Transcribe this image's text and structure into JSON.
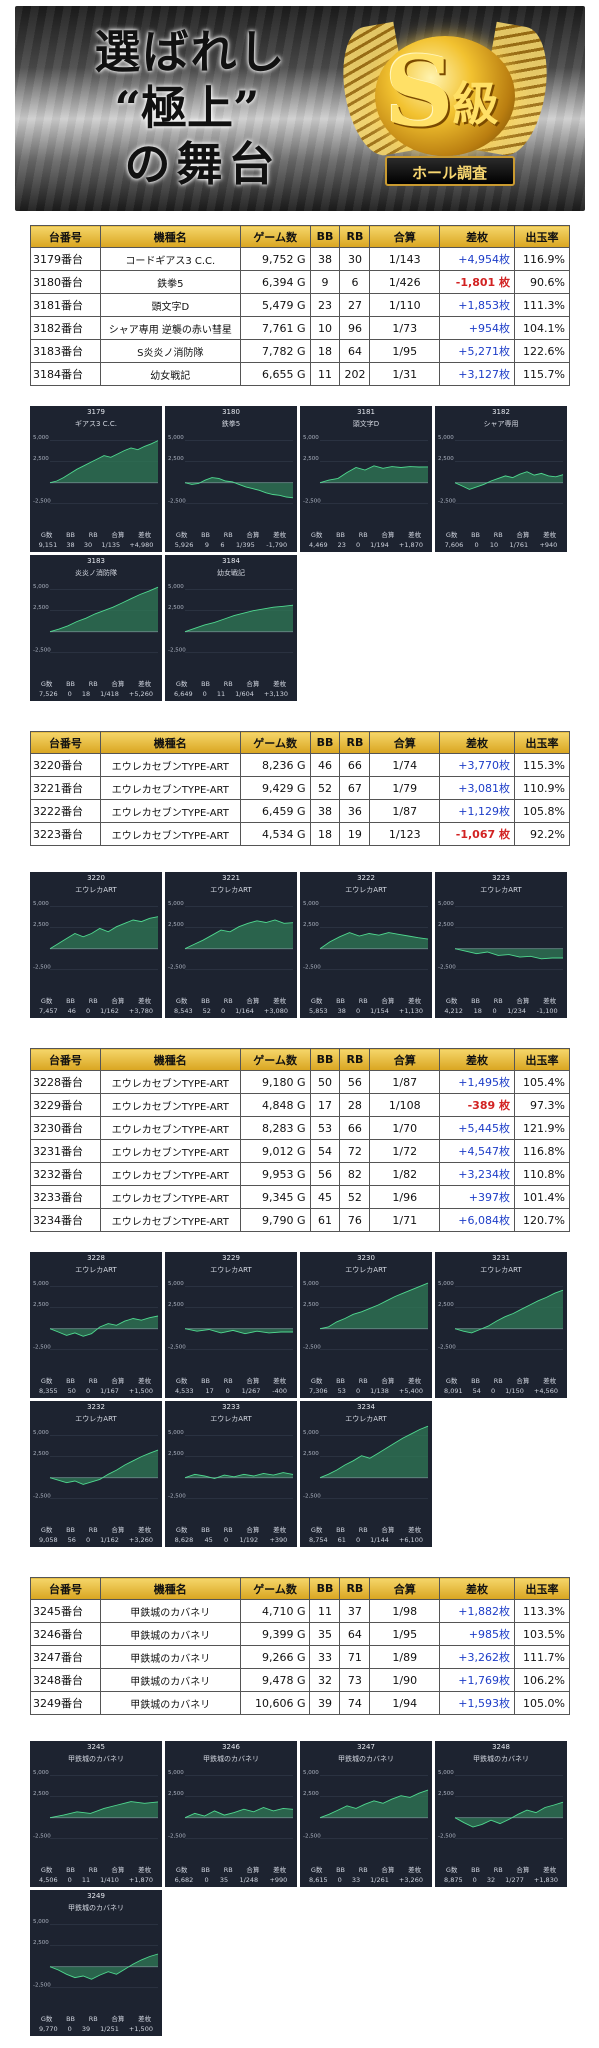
{
  "banner": {
    "title_line1": "選ばれし",
    "title_line2": "“極上”",
    "title_line3": "の舞台",
    "badge_letter": "S",
    "badge_grade": "級",
    "badge_ribbon": "ホール調査"
  },
  "table_headers": [
    "台番号",
    "機種名",
    "ゲーム数",
    "BB",
    "RB",
    "合算",
    "差枚",
    "出玉率"
  ],
  "graph_stat_labels": [
    "G数",
    "BB",
    "RB",
    "合算",
    "差枚"
  ],
  "axis_labels": {
    "top": "5,000",
    "mid": "2,500",
    "zero": "0",
    "low": "-2,500"
  },
  "colors": {
    "gold": "#e0b030",
    "graph_bg": "#1d2330",
    "area_fill": "#2f7a55",
    "line": "#4fd88f",
    "positive": "#1d3dc8",
    "negative": "#d22222"
  },
  "groups": [
    {
      "rows": [
        {
          "no": "3179番台",
          "name": "コードギアス3 C.C.",
          "games": "9,752 G",
          "bb": "38",
          "rb": "30",
          "combined": "1/143",
          "diff": "+4,954枚",
          "rate": "116.9%",
          "sign": "pos"
        },
        {
          "no": "3180番台",
          "name": "鉄拳5",
          "games": "6,394 G",
          "bb": "9",
          "rb": "6",
          "combined": "1/426",
          "diff": "-1,801 枚",
          "rate": "90.6%",
          "sign": "neg"
        },
        {
          "no": "3181番台",
          "name": "頭文字D",
          "games": "5,479 G",
          "bb": "23",
          "rb": "27",
          "combined": "1/110",
          "diff": "+1,853枚",
          "rate": "111.3%",
          "sign": "pos"
        },
        {
          "no": "3182番台",
          "name": "シャア専用 逆襲の赤い彗星",
          "games": "7,761 G",
          "bb": "10",
          "rb": "96",
          "combined": "1/73",
          "diff": "+954枚",
          "rate": "104.1%",
          "sign": "pos"
        },
        {
          "no": "3183番台",
          "name": "S炎炎ノ消防隊",
          "games": "7,782 G",
          "bb": "18",
          "rb": "64",
          "combined": "1/95",
          "diff": "+5,271枚",
          "rate": "122.6%",
          "sign": "pos"
        },
        {
          "no": "3184番台",
          "name": "幼女戦記",
          "games": "6,655 G",
          "bb": "11",
          "rb": "202",
          "combined": "1/31",
          "diff": "+3,127枚",
          "rate": "115.7%",
          "sign": "pos"
        }
      ],
      "graphs": [
        {
          "id": "3179",
          "name": "ギアス3 C.C.",
          "g": "9,151",
          "bb": "38",
          "rb": "30",
          "gosan": "1/135",
          "diff": "+4,980",
          "series": [
            0,
            200,
            600,
            1100,
            1600,
            2000,
            2400,
            2800,
            3200,
            3000,
            3400,
            3800,
            4100,
            3900,
            4300,
            4600,
            4980
          ]
        },
        {
          "id": "3180",
          "name": "鉄拳5",
          "g": "5,926",
          "bb": "9",
          "rb": "6",
          "gosan": "1/395",
          "diff": "-1,790",
          "series": [
            0,
            -200,
            -100,
            300,
            600,
            500,
            200,
            100,
            -200,
            -500,
            -700,
            -900,
            -1200,
            -1400,
            -1500,
            -1700,
            -1790
          ]
        },
        {
          "id": "3181",
          "name": "頭文字D",
          "g": "4,469",
          "bb": "23",
          "rb": "0",
          "gosan": "1/194",
          "diff": "+1,870",
          "series": [
            0,
            300,
            500,
            1200,
            1800,
            1500,
            2000,
            1700,
            1900,
            1800,
            1900,
            1850,
            1870
          ]
        },
        {
          "id": "3182",
          "name": "シャア専用",
          "g": "7,606",
          "bb": "0",
          "rb": "10",
          "gosan": "1/761",
          "diff": "+940",
          "series": [
            0,
            -400,
            -800,
            -500,
            -200,
            200,
            500,
            800,
            600,
            1000,
            1300,
            900,
            1100,
            800,
            700,
            940
          ]
        },
        {
          "id": "3183",
          "name": "炎炎ノ消防隊",
          "g": "7,526",
          "bb": "0",
          "rb": "18",
          "gosan": "1/418",
          "diff": "+5,260",
          "series": [
            0,
            300,
            700,
            1200,
            1600,
            2100,
            2500,
            2900,
            3400,
            3900,
            4400,
            4800,
            5260
          ]
        },
        {
          "id": "3184",
          "name": "幼女戦記",
          "g": "6,649",
          "bb": "0",
          "rb": "11",
          "gosan": "1/604",
          "diff": "+3,130",
          "series": [
            0,
            400,
            800,
            1100,
            1500,
            1900,
            2200,
            2500,
            2700,
            2900,
            3000,
            3130
          ]
        }
      ]
    },
    {
      "rows": [
        {
          "no": "3220番台",
          "name": "エウレカセブンTYPE-ART",
          "games": "8,236 G",
          "bb": "46",
          "rb": "66",
          "combined": "1/74",
          "diff": "+3,770枚",
          "rate": "115.3%",
          "sign": "pos"
        },
        {
          "no": "3221番台",
          "name": "エウレカセブンTYPE-ART",
          "games": "9,429 G",
          "bb": "52",
          "rb": "67",
          "combined": "1/79",
          "diff": "+3,081枚",
          "rate": "110.9%",
          "sign": "pos"
        },
        {
          "no": "3222番台",
          "name": "エウレカセブンTYPE-ART",
          "games": "6,459 G",
          "bb": "38",
          "rb": "36",
          "combined": "1/87",
          "diff": "+1,129枚",
          "rate": "105.8%",
          "sign": "pos"
        },
        {
          "no": "3223番台",
          "name": "エウレカセブンTYPE-ART",
          "games": "4,534 G",
          "bb": "18",
          "rb": "19",
          "combined": "1/123",
          "diff": "-1,067 枚",
          "rate": "92.2%",
          "sign": "neg"
        }
      ],
      "graphs": [
        {
          "id": "3220",
          "name": "エウレカART",
          "g": "7,457",
          "bb": "46",
          "rb": "0",
          "gosan": "1/162",
          "diff": "+3,780",
          "series": [
            0,
            600,
            1200,
            1800,
            1400,
            1800,
            2400,
            2000,
            2600,
            3000,
            3400,
            3200,
            3600,
            3780
          ]
        },
        {
          "id": "3221",
          "name": "エウレカART",
          "g": "8,543",
          "bb": "52",
          "rb": "0",
          "gosan": "1/164",
          "diff": "+3,080",
          "series": [
            0,
            500,
            1000,
            1600,
            2200,
            2000,
            2600,
            3000,
            3300,
            3100,
            3400,
            3000,
            3080
          ]
        },
        {
          "id": "3222",
          "name": "エウレカART",
          "g": "5,853",
          "bb": "38",
          "rb": "0",
          "gosan": "1/154",
          "diff": "+1,130",
          "series": [
            0,
            800,
            1400,
            1900,
            1500,
            1800,
            1600,
            1900,
            1700,
            1500,
            1300,
            1130
          ]
        },
        {
          "id": "3223",
          "name": "エウレカART",
          "g": "4,212",
          "bb": "18",
          "rb": "0",
          "gosan": "1/234",
          "diff": "-1,100",
          "series": [
            0,
            -300,
            -600,
            -400,
            -800,
            -700,
            -1000,
            -900,
            -1200,
            -1100,
            -1100
          ]
        }
      ]
    },
    {
      "rows": [
        {
          "no": "3228番台",
          "name": "エウレカセブンTYPE-ART",
          "games": "9,180 G",
          "bb": "50",
          "rb": "56",
          "combined": "1/87",
          "diff": "+1,495枚",
          "rate": "105.4%",
          "sign": "pos"
        },
        {
          "no": "3229番台",
          "name": "エウレカセブンTYPE-ART",
          "games": "4,848 G",
          "bb": "17",
          "rb": "28",
          "combined": "1/108",
          "diff": "-389 枚",
          "rate": "97.3%",
          "sign": "neg"
        },
        {
          "no": "3230番台",
          "name": "エウレカセブンTYPE-ART",
          "games": "8,283 G",
          "bb": "53",
          "rb": "66",
          "combined": "1/70",
          "diff": "+5,445枚",
          "rate": "121.9%",
          "sign": "pos"
        },
        {
          "no": "3231番台",
          "name": "エウレカセブンTYPE-ART",
          "games": "9,012 G",
          "bb": "54",
          "rb": "72",
          "combined": "1/72",
          "diff": "+4,547枚",
          "rate": "116.8%",
          "sign": "pos"
        },
        {
          "no": "3232番台",
          "name": "エウレカセブンTYPE-ART",
          "games": "9,953 G",
          "bb": "56",
          "rb": "82",
          "combined": "1/82",
          "diff": "+3,234枚",
          "rate": "110.8%",
          "sign": "pos"
        },
        {
          "no": "3233番台",
          "name": "エウレカセブンTYPE-ART",
          "games": "9,345 G",
          "bb": "45",
          "rb": "52",
          "combined": "1/96",
          "diff": "+397枚",
          "rate": "101.4%",
          "sign": "pos"
        },
        {
          "no": "3234番台",
          "name": "エウレカセブンTYPE-ART",
          "games": "9,790 G",
          "bb": "61",
          "rb": "76",
          "combined": "1/71",
          "diff": "+6,084枚",
          "rate": "120.7%",
          "sign": "pos"
        }
      ],
      "graphs": [
        {
          "id": "3228",
          "name": "エウレカART",
          "g": "8,355",
          "bb": "50",
          "rb": "0",
          "gosan": "1/167",
          "diff": "+1,500",
          "series": [
            0,
            -400,
            -800,
            -500,
            -900,
            -600,
            200,
            600,
            400,
            900,
            1200,
            1000,
            1300,
            1500
          ]
        },
        {
          "id": "3229",
          "name": "エウレカART",
          "g": "4,533",
          "bb": "17",
          "rb": "0",
          "gosan": "1/267",
          "diff": "-400",
          "series": [
            0,
            -300,
            -100,
            -500,
            -200,
            -600,
            -300,
            -500,
            -400,
            -400
          ]
        },
        {
          "id": "3230",
          "name": "エウレカART",
          "g": "7,306",
          "bb": "53",
          "rb": "0",
          "gosan": "1/138",
          "diff": "+5,400",
          "series": [
            0,
            200,
            800,
            1200,
            1700,
            2000,
            2400,
            2800,
            3300,
            3800,
            4200,
            4600,
            5000,
            5400
          ]
        },
        {
          "id": "3231",
          "name": "エウレカART",
          "g": "8,091",
          "bb": "54",
          "rb": "0",
          "gosan": "1/150",
          "diff": "+4,560",
          "series": [
            0,
            -300,
            -500,
            -100,
            300,
            900,
            1400,
            1800,
            2300,
            2800,
            3300,
            3700,
            4200,
            4560
          ]
        },
        {
          "id": "3232",
          "name": "エウレカART",
          "g": "9,058",
          "bb": "56",
          "rb": "0",
          "gosan": "1/162",
          "diff": "+3,260",
          "series": [
            0,
            -300,
            -600,
            -400,
            -800,
            -500,
            -200,
            400,
            900,
            1500,
            2000,
            2500,
            2900,
            3260
          ]
        },
        {
          "id": "3233",
          "name": "エウレカART",
          "g": "8,628",
          "bb": "45",
          "rb": "0",
          "gosan": "1/192",
          "diff": "+390",
          "series": [
            0,
            400,
            200,
            -100,
            300,
            100,
            400,
            200,
            500,
            300,
            600,
            390
          ]
        },
        {
          "id": "3234",
          "name": "エウレカART",
          "g": "8,754",
          "bb": "61",
          "rb": "0",
          "gosan": "1/144",
          "diff": "+6,100",
          "series": [
            0,
            400,
            900,
            1500,
            2000,
            2600,
            2300,
            2900,
            3500,
            4100,
            4700,
            5200,
            5700,
            6100
          ]
        }
      ]
    },
    {
      "rows": [
        {
          "no": "3245番台",
          "name": "甲鉄城のカバネリ",
          "games": "4,710 G",
          "bb": "11",
          "rb": "37",
          "combined": "1/98",
          "diff": "+1,882枚",
          "rate": "113.3%",
          "sign": "pos"
        },
        {
          "no": "3246番台",
          "name": "甲鉄城のカバネリ",
          "games": "9,399 G",
          "bb": "35",
          "rb": "64",
          "combined": "1/95",
          "diff": "+985枚",
          "rate": "103.5%",
          "sign": "pos"
        },
        {
          "no": "3247番台",
          "name": "甲鉄城のカバネリ",
          "games": "9,266 G",
          "bb": "33",
          "rb": "71",
          "combined": "1/89",
          "diff": "+3,262枚",
          "rate": "111.7%",
          "sign": "pos"
        },
        {
          "no": "3248番台",
          "name": "甲鉄城のカバネリ",
          "games": "9,478 G",
          "bb": "32",
          "rb": "73",
          "combined": "1/90",
          "diff": "+1,769枚",
          "rate": "106.2%",
          "sign": "pos"
        },
        {
          "no": "3249番台",
          "name": "甲鉄城のカバネリ",
          "games": "10,606 G",
          "bb": "39",
          "rb": "74",
          "combined": "1/94",
          "diff": "+1,593枚",
          "rate": "105.0%",
          "sign": "pos"
        }
      ],
      "graphs": [
        {
          "id": "3245",
          "name": "甲鉄城のカバネリ",
          "g": "4,506",
          "bb": "0",
          "rb": "11",
          "gosan": "1/410",
          "diff": "+1,870",
          "series": [
            0,
            300,
            700,
            500,
            1100,
            1500,
            1900,
            1700,
            1870
          ]
        },
        {
          "id": "3246",
          "name": "甲鉄城のカバネリ",
          "g": "6,682",
          "bb": "0",
          "rb": "35",
          "gosan": "1/248",
          "diff": "+990",
          "series": [
            0,
            500,
            200,
            800,
            300,
            600,
            1000,
            700,
            1200,
            800,
            1100,
            990
          ]
        },
        {
          "id": "3247",
          "name": "甲鉄城のカバネリ",
          "g": "8,615",
          "bb": "0",
          "rb": "33",
          "gosan": "1/261",
          "diff": "+3,260",
          "series": [
            0,
            400,
            900,
            1400,
            1100,
            1600,
            2000,
            1700,
            2200,
            2600,
            2400,
            2900,
            3260
          ]
        },
        {
          "id": "3248",
          "name": "甲鉄城のカバネリ",
          "g": "8,875",
          "bb": "0",
          "rb": "32",
          "gosan": "1/277",
          "diff": "+1,830",
          "series": [
            0,
            -600,
            -1100,
            -800,
            -300,
            -700,
            -200,
            400,
            900,
            600,
            1200,
            1500,
            1830
          ]
        },
        {
          "id": "3249",
          "name": "甲鉄城のカバネリ",
          "g": "9,770",
          "bb": "0",
          "rb": "39",
          "gosan": "1/251",
          "diff": "+1,500",
          "series": [
            0,
            -400,
            -900,
            -1300,
            -1100,
            -1500,
            -1000,
            -600,
            -900,
            -300,
            300,
            800,
            1200,
            1500
          ]
        }
      ]
    }
  ]
}
